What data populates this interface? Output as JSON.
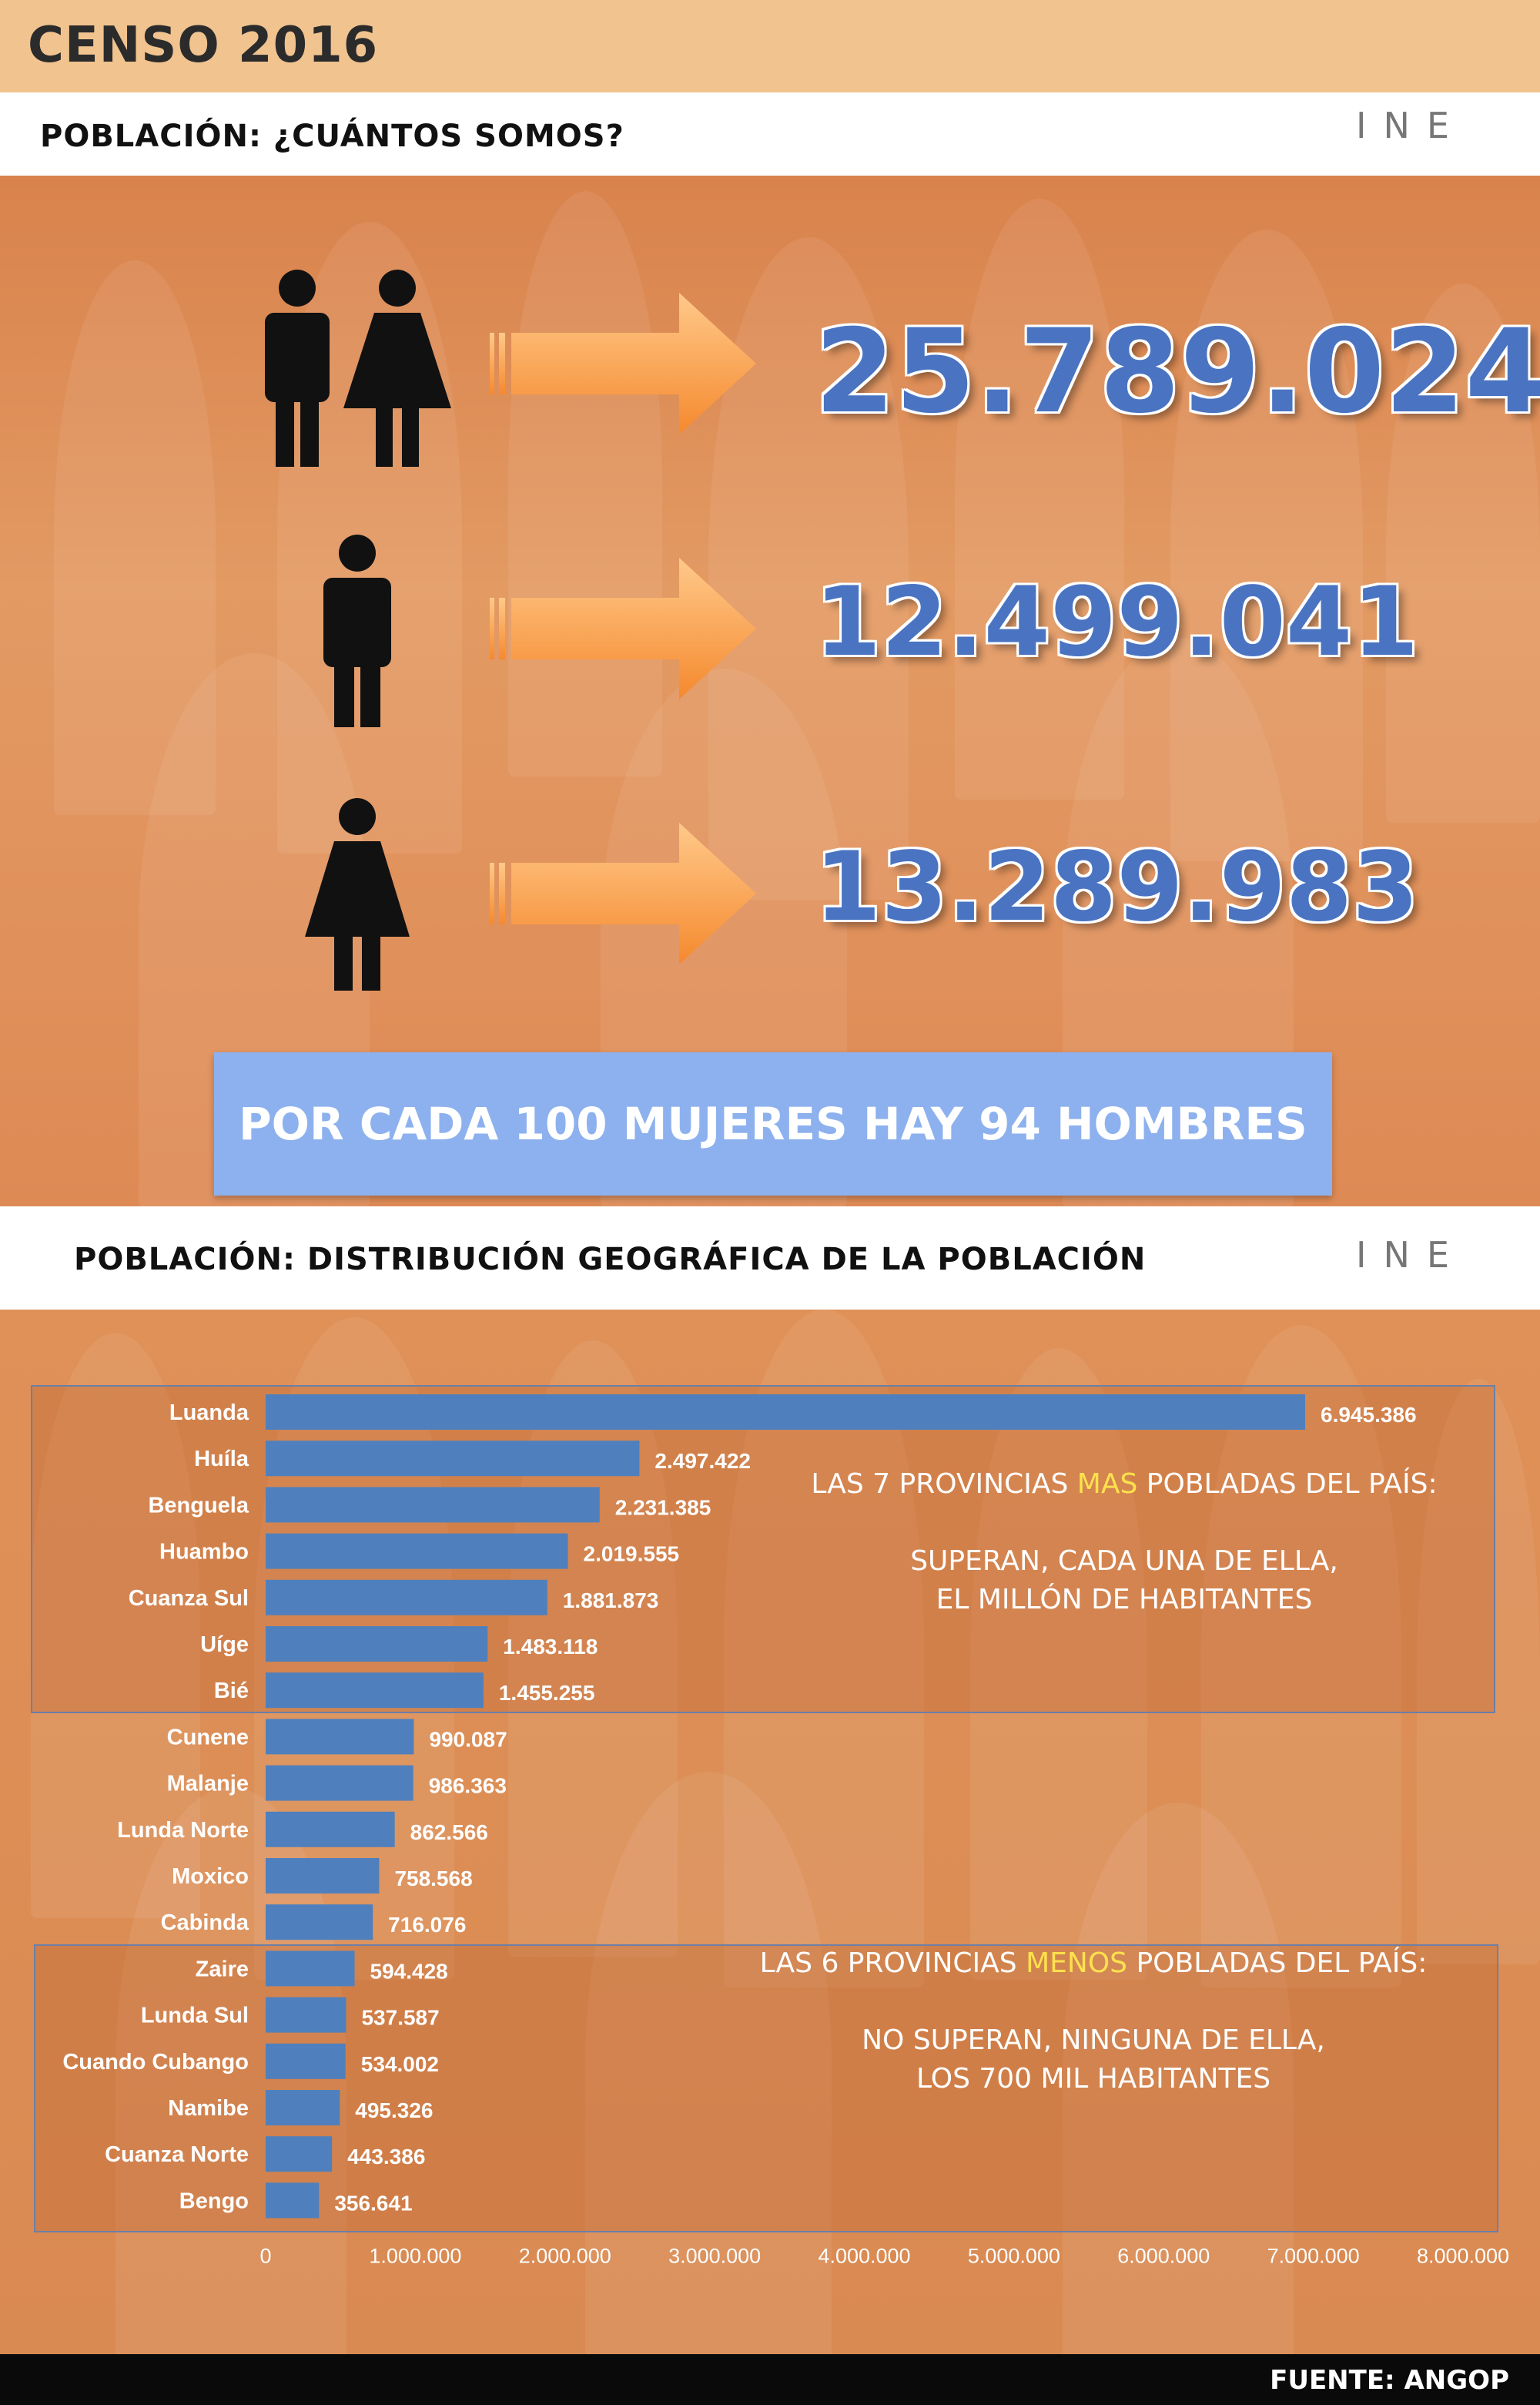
{
  "header": {
    "title": "CENSO 2016"
  },
  "section1": {
    "title": "POBLACIÓN: ¿CUÁNTOS SOMOS?",
    "logo": "INE"
  },
  "totals": {
    "total": "25.789.024",
    "men": "12.499.041",
    "women": "13.289.983"
  },
  "ratio": "POR CADA 100 MUJERES HAY 94 HOMBRES",
  "section2": {
    "title": "POBLACIÓN: DISTRIBUCIÓN GEOGRÁFICA DE LA POBLACIÓN",
    "logo": "INE"
  },
  "notes": {
    "top_pre": "LAS 7 PROVINCIAS ",
    "top_hl": "MAS",
    "top_post": " POBLADAS DEL PAÍS:",
    "top_l1": "SUPERAN, CADA UNA DE ELLA,",
    "top_l2": "EL MILLÓN DE HABITANTES",
    "bot_pre": "LAS 6 PROVINCIAS ",
    "bot_hl": "MENOS",
    "bot_post": " POBLADAS DEL PAÍS:",
    "bot_l1": "NO SUPERAN, NINGUNA DE ELLA,",
    "bot_l2": "LOS 700 MIL HABITANTES"
  },
  "footer": "FUENTE: ANGOP",
  "colors": {
    "bar": "#4f80bd",
    "accent": "#ffe14d",
    "number": "#4a74c2"
  },
  "chart_data": {
    "type": "bar",
    "orientation": "horizontal",
    "categories": [
      "Luanda",
      "Huíla",
      "Benguela",
      "Huambo",
      "Cuanza Sul",
      "Uíge",
      "Bié",
      "Cunene",
      "Malanje",
      "Lunda Norte",
      "Moxico",
      "Cabinda",
      "Zaire",
      "Lunda Sul",
      "Cuando Cubango",
      "Namibe",
      "Cuanza Norte",
      "Bengo"
    ],
    "values": [
      6945386,
      2497422,
      2231385,
      2019555,
      1881873,
      1483118,
      1455255,
      990087,
      986363,
      862566,
      758568,
      716076,
      594428,
      537587,
      534002,
      495326,
      443386,
      356641
    ],
    "value_labels": [
      "6.945.386",
      "2.497.422",
      "2.231.385",
      "2.019.555",
      "1.881.873",
      "1.483.118",
      "1.455.255",
      "990.087",
      "986.363",
      "862.566",
      "758.568",
      "716.076",
      "594.428",
      "537.587",
      "534.002",
      "495.326",
      "443.386",
      "356.641"
    ],
    "xlim": [
      0,
      8000000
    ],
    "xticks": [
      0,
      1000000,
      2000000,
      3000000,
      4000000,
      5000000,
      6000000,
      7000000,
      8000000
    ],
    "xtick_labels": [
      "0",
      "1.000.000",
      "2.000.000",
      "3.000.000",
      "4.000.000",
      "5.000.000",
      "6.000.000",
      "7.000.000",
      "8.000.000"
    ],
    "grid": false,
    "legend": "none"
  }
}
